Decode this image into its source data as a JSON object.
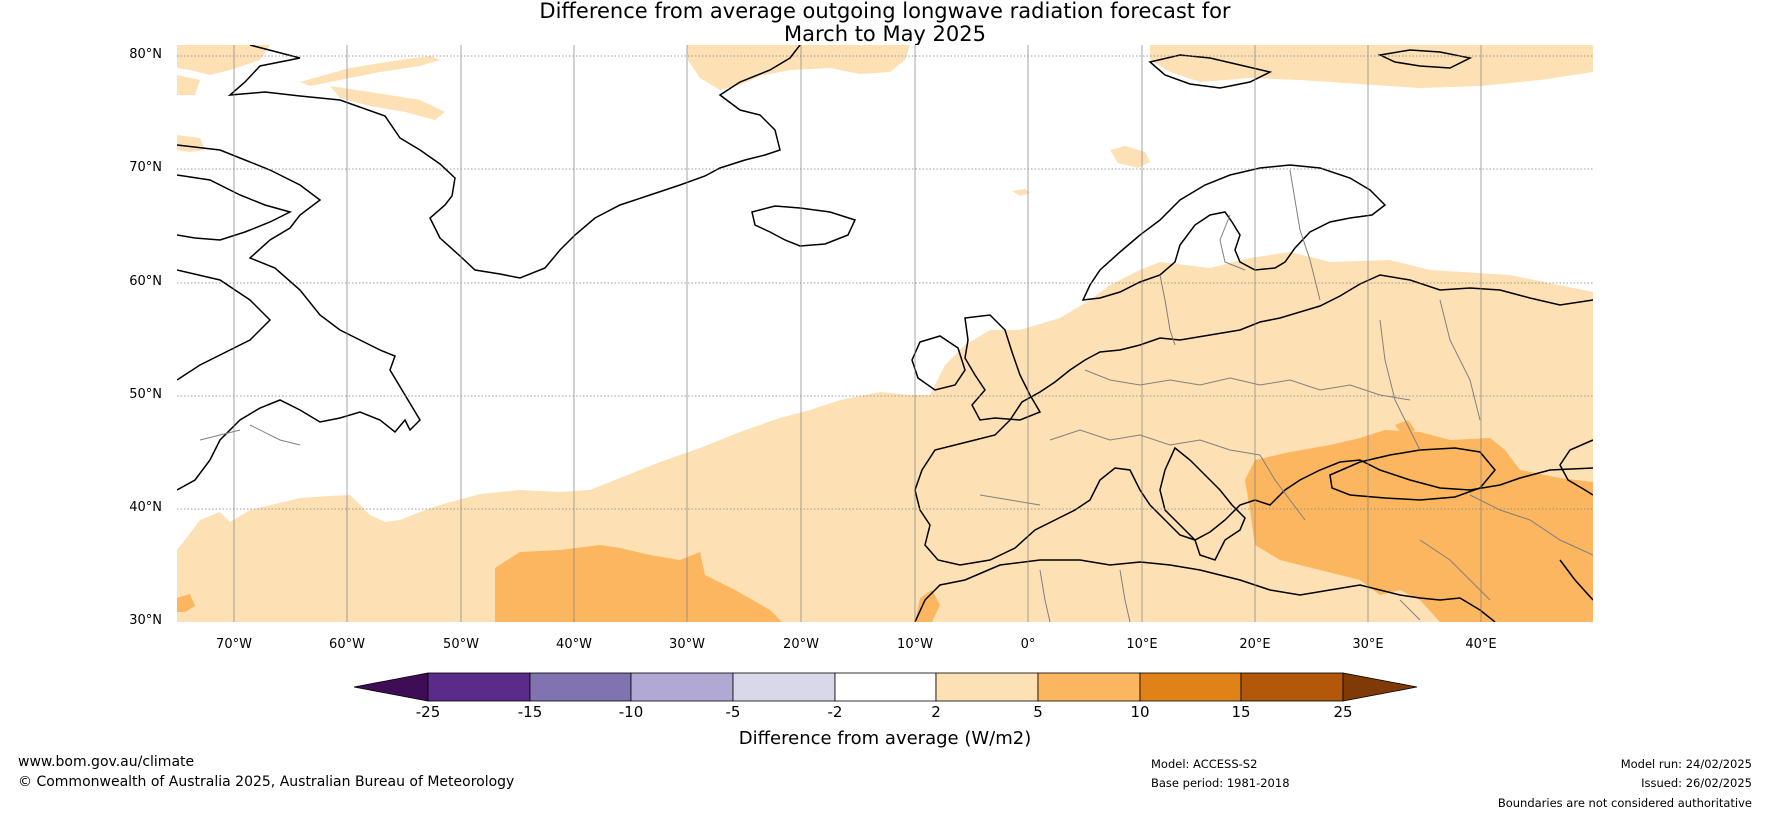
{
  "title": {
    "line1": "Difference from average outgoing longwave radiation forecast for",
    "line2": "March to May 2025"
  },
  "map": {
    "lat_labels": [
      "80°N",
      "70°N",
      "60°N",
      "50°N",
      "40°N",
      "30°N"
    ],
    "lon_labels": [
      "70°W",
      "60°W",
      "50°W",
      "40°W",
      "30°W",
      "20°W",
      "10°W",
      "0°",
      "10°E",
      "20°E",
      "30°E",
      "40°E"
    ],
    "colors": {
      "ocean": "#ffffff",
      "light_orange": "#fde0b3",
      "medium_orange": "#fbb65f",
      "coast": "#000000",
      "border": "#808080"
    }
  },
  "colorbar": {
    "ticks": [
      "-25",
      "-15",
      "-10",
      "-5",
      "-2",
      "2",
      "5",
      "10",
      "15",
      "25"
    ],
    "colors": [
      "#3f0d56",
      "#5a2b8a",
      "#8073b0",
      "#b1a9d4",
      "#d9d8ea",
      "#ffffff",
      "#fde0b3",
      "#fbb65f",
      "#e18219",
      "#b3580a",
      "#7f3a08"
    ],
    "label": "Difference from average (W/m2)"
  },
  "footer": {
    "website": "www.bom.gov.au/climate",
    "copyright": "© Commonwealth of Australia 2025, Australian Bureau of Meteorology",
    "model": "Model: ACCESS-S2",
    "base_period": "Base period: 1981-2018",
    "model_run": "Model run: 24/02/2025",
    "issued": "Issued: 26/02/2025",
    "disclaimer": "Boundaries are not considered authoritative"
  }
}
